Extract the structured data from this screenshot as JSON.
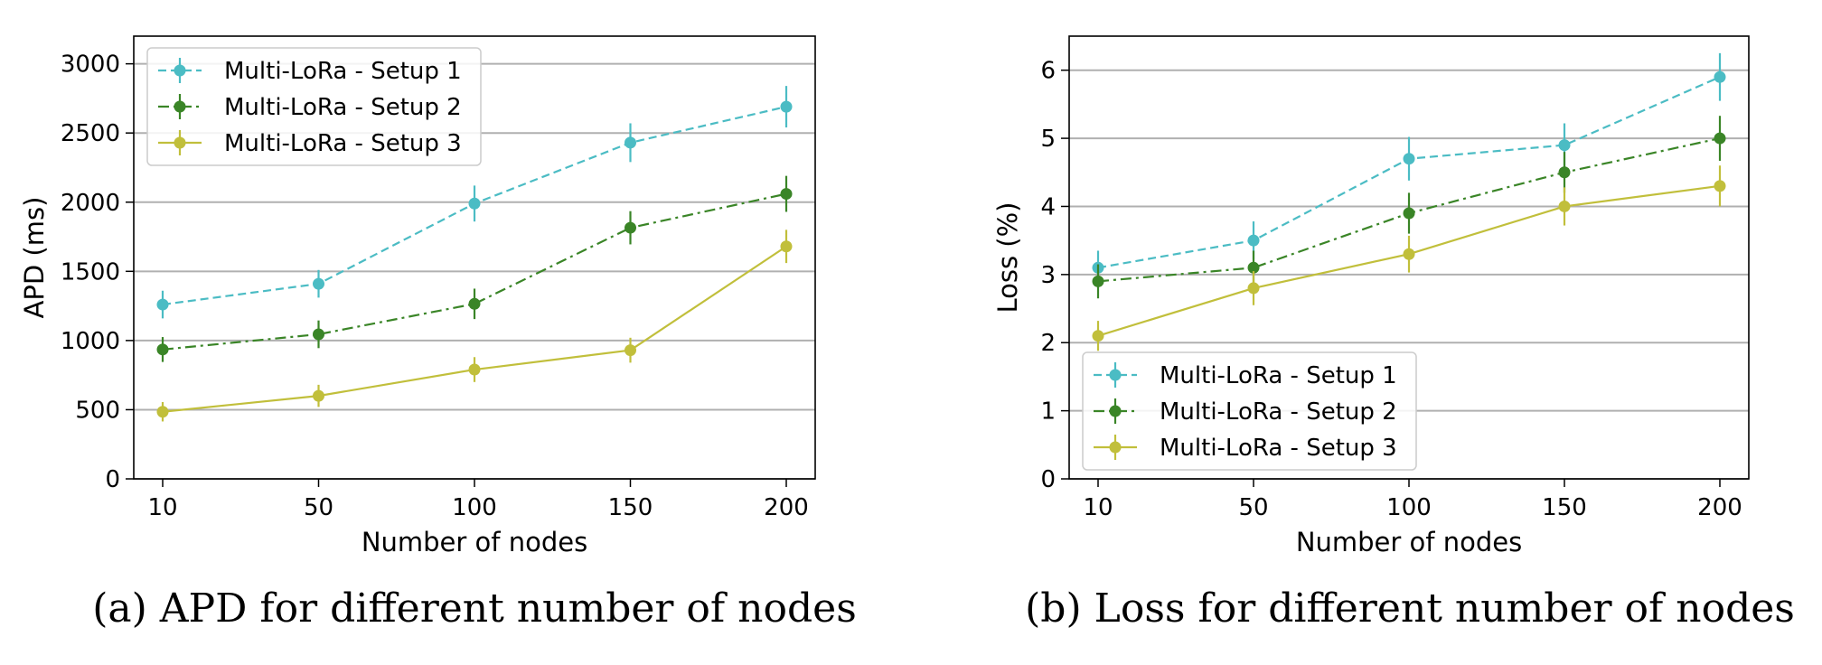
{
  "chart_data": [
    {
      "type": "line",
      "caption": "(a) APD for different number of nodes",
      "xlabel": "Number of nodes",
      "ylabel": "APD (ms)",
      "x_tick_labels": [
        "10",
        "50",
        "100",
        "150",
        "200"
      ],
      "y_ticks": [
        0,
        500,
        1000,
        1500,
        2000,
        2500,
        3000
      ],
      "ylim": [
        0,
        3200
      ],
      "grid": "horizontal",
      "legend_position": "top-left",
      "series": [
        {
          "name": "Multi-LoRa - Setup 1",
          "color": "#4bbcc4",
          "dash": "dashed",
          "values": [
            1260,
            1410,
            1990,
            2430,
            2690
          ],
          "errors": [
            100,
            100,
            130,
            140,
            150
          ]
        },
        {
          "name": "Multi-LoRa - Setup 2",
          "color": "#3a8527",
          "dash": "dashdot",
          "values": [
            935,
            1045,
            1265,
            1815,
            2060
          ],
          "errors": [
            90,
            100,
            110,
            120,
            130
          ]
        },
        {
          "name": "Multi-LoRa - Setup 3",
          "color": "#c1bf3b",
          "dash": "solid",
          "values": [
            485,
            600,
            790,
            930,
            1680
          ],
          "errors": [
            70,
            80,
            90,
            90,
            120
          ]
        }
      ]
    },
    {
      "type": "line",
      "caption": "(b) Loss for different number of nodes",
      "xlabel": "Number of nodes",
      "ylabel": "Loss (%)",
      "x_tick_labels": [
        "10",
        "50",
        "100",
        "150",
        "200"
      ],
      "y_ticks": [
        0,
        1,
        2,
        3,
        4,
        5,
        6
      ],
      "ylim": [
        0,
        6.5
      ],
      "grid": "horizontal",
      "legend_position": "bottom-left",
      "series": [
        {
          "name": "Multi-LoRa - Setup 1",
          "color": "#4bbcc4",
          "dash": "dashed",
          "values": [
            3.1,
            3.5,
            4.7,
            4.9,
            5.9
          ],
          "errors": [
            0.25,
            0.28,
            0.32,
            0.32,
            0.35
          ]
        },
        {
          "name": "Multi-LoRa - Setup 2",
          "color": "#3a8527",
          "dash": "dashdot",
          "values": [
            2.9,
            3.1,
            3.9,
            4.5,
            5.0
          ],
          "errors": [
            0.25,
            0.25,
            0.3,
            0.3,
            0.33
          ]
        },
        {
          "name": "Multi-LoRa - Setup 3",
          "color": "#c1bf3b",
          "dash": "solid",
          "values": [
            2.1,
            2.8,
            3.3,
            4.0,
            4.3
          ],
          "errors": [
            0.22,
            0.25,
            0.27,
            0.28,
            0.3
          ]
        }
      ]
    }
  ]
}
